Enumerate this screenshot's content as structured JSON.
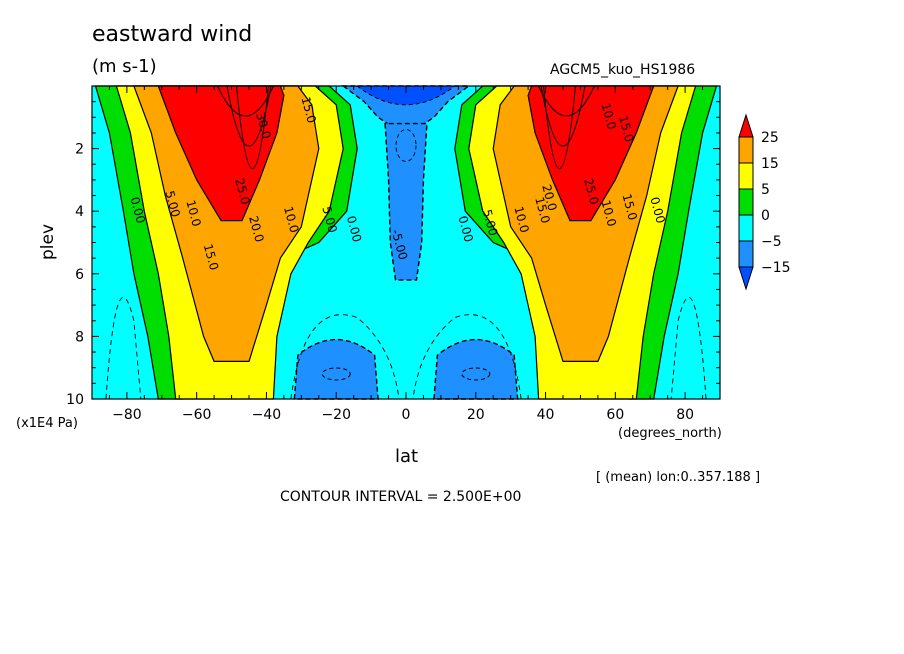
{
  "chart_data": {
    "type": "heatmap",
    "title": "eastward wind",
    "units": "(m s-1)",
    "run_label": "AGCM5_kuo_HS1986",
    "xlabel": "lat",
    "xunit": "(degrees_north)",
    "ylabel": "plev",
    "yunit": "(x1E4 Pa)",
    "xlim": [
      -90,
      90
    ],
    "ylim": [
      10,
      0
    ],
    "x_ticks": [
      -80,
      -60,
      -40,
      -20,
      0,
      20,
      40,
      60,
      80
    ],
    "x_tick_labels": [
      "−80",
      "−60",
      "−40",
      "−20",
      "0",
      "20",
      "40",
      "60",
      "80"
    ],
    "y_ticks": [
      2,
      4,
      6,
      8,
      10
    ],
    "y_tick_labels": [
      "2",
      "4",
      "6",
      "8",
      "10"
    ],
    "colorbar": {
      "labels": [
        "25",
        "15",
        "5",
        "0",
        "−5",
        "−15"
      ],
      "levels": [
        25,
        15,
        5,
        0,
        -5,
        -15
      ],
      "colors": [
        "#ff0000",
        "#ffa500",
        "#ffff00",
        "#00dd00",
        "#00ffff",
        "#1e90ff",
        "#0050ff"
      ]
    },
    "contour_labels": [
      {
        "text": "30.0",
        "lat": -42,
        "plev": 1.3
      },
      {
        "text": "15.0",
        "lat": -29,
        "plev": 0.8
      },
      {
        "text": "25.0",
        "lat": -48,
        "plev": 3.4
      },
      {
        "text": "20.0",
        "lat": -44,
        "plev": 4.6
      },
      {
        "text": "15.0",
        "lat": -57,
        "plev": 5.5
      },
      {
        "text": "10.0",
        "lat": -62,
        "plev": 4.1
      },
      {
        "text": "5.00",
        "lat": -68,
        "plev": 3.8
      },
      {
        "text": "0.00",
        "lat": -78,
        "plev": 4.0
      },
      {
        "text": "10.0",
        "lat": -34,
        "plev": 4.3
      },
      {
        "text": "5.00",
        "lat": -23,
        "plev": 4.3
      },
      {
        "text": "0.00",
        "lat": -16,
        "plev": 4.6
      },
      {
        "text": "-5.00",
        "lat": -3,
        "plev": 5.1
      },
      {
        "text": "0.00",
        "lat": 16,
        "plev": 4.6
      },
      {
        "text": "5.00",
        "lat": 23,
        "plev": 4.4
      },
      {
        "text": "10.0",
        "lat": 32,
        "plev": 4.3
      },
      {
        "text": "15.0",
        "lat": 38,
        "plev": 4.0
      },
      {
        "text": "20.0",
        "lat": 40,
        "plev": 3.6
      },
      {
        "text": "25.0",
        "lat": 52,
        "plev": 3.4
      },
      {
        "text": "10.0",
        "lat": 57,
        "plev": 4.1
      },
      {
        "text": "15.0",
        "lat": 63,
        "plev": 3.9
      },
      {
        "text": "0.00",
        "lat": 71,
        "plev": 4.0
      },
      {
        "text": "10.0",
        "lat": 57,
        "plev": 1.0
      },
      {
        "text": "15.0",
        "lat": 62,
        "plev": 1.4
      }
    ],
    "footnote": "[ (mean) lon:0..357.188 ]",
    "contour_interval_text": "CONTOUR INTERVAL = 2.500E+00"
  }
}
